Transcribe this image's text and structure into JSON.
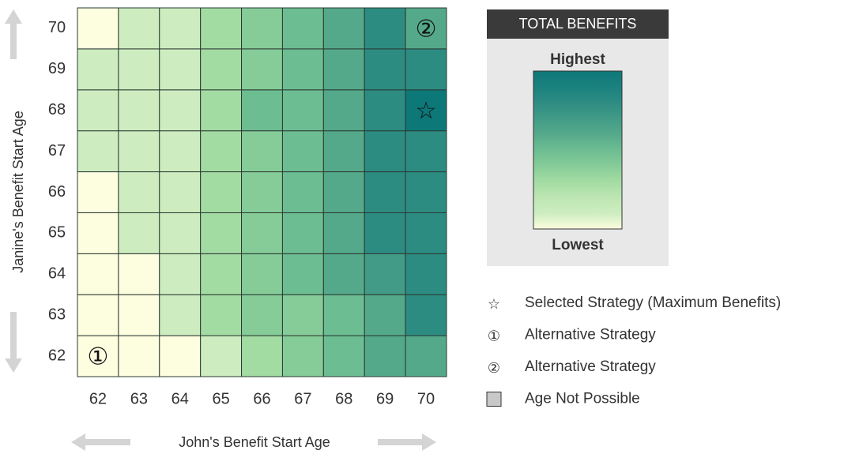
{
  "chart_data": {
    "type": "heatmap",
    "x": [
      62,
      63,
      64,
      65,
      66,
      67,
      68,
      69,
      70
    ],
    "y": [
      62,
      63,
      64,
      65,
      66,
      67,
      68,
      69,
      70
    ],
    "values": [
      [
        0,
        0,
        0,
        1,
        3,
        4,
        5,
        6,
        6
      ],
      [
        0,
        0,
        1,
        3,
        4,
        4,
        5,
        6,
        8
      ],
      [
        0,
        0,
        1,
        3,
        4,
        5,
        6,
        7,
        8
      ],
      [
        0,
        1,
        1,
        3,
        4,
        5,
        6,
        8,
        8
      ],
      [
        0,
        1,
        1,
        3,
        4,
        5,
        6,
        8,
        8
      ],
      [
        1,
        1,
        1,
        3,
        4,
        5,
        6,
        8,
        8
      ],
      [
        1,
        1,
        1,
        3,
        5,
        5,
        6,
        8,
        10
      ],
      [
        1,
        1,
        1,
        3,
        4,
        5,
        6,
        8,
        8
      ],
      [
        0,
        1,
        1,
        3,
        4,
        5,
        6,
        8,
        6
      ]
    ],
    "zlim": [
      0,
      10
    ],
    "colorscale": [
      "#fdfddf",
      "#cdedc0",
      "#bde6b3",
      "#a3dca3",
      "#86cc98",
      "#6dbd92",
      "#55a98b",
      "#419b87",
      "#2d8c82",
      "#1b817e",
      "#0d7878"
    ],
    "xlabel": "John's Benefit Start Age",
    "ylabel": "Janine's Benefit Start Age",
    "legend_title": "TOTAL BENEFITS",
    "legend_high": "Highest",
    "legend_low": "Lowest",
    "annotations": [
      {
        "symbol": "☆",
        "x": 70,
        "y": 68
      },
      {
        "symbol": "①",
        "x": 62,
        "y": 62
      },
      {
        "symbol": "②",
        "x": 70,
        "y": 70
      }
    ],
    "legend": [
      {
        "symbol": "☆",
        "label": "Selected Strategy (Maximum Benefits)"
      },
      {
        "symbol": "①",
        "label": "Alternative Strategy"
      },
      {
        "symbol": "②",
        "label": "Alternative Strategy"
      },
      {
        "label": "Age Not Possible"
      }
    ]
  }
}
